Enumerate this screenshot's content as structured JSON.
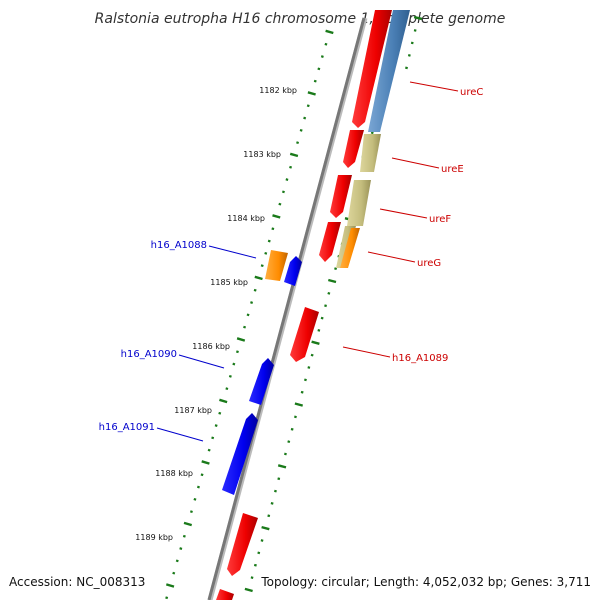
{
  "title": "Ralstonia eutropha H16 chromosome 1, complete genome",
  "footer": {
    "accession": "Accession: NC_008313",
    "topology": "Topology: circular; Length: 4,052,032 bp; Genes: 3,711"
  },
  "ticks": [
    "1182 kbp",
    "1183 kbp",
    "1184 kbp",
    "1185 kbp",
    "1186 kbp",
    "1187 kbp",
    "1188 kbp",
    "1189 kbp"
  ],
  "labels": {
    "ureC": "ureC",
    "ureE": "ureE",
    "ureF": "ureF",
    "ureG": "ureG",
    "h16_A1089": "h16_A1089",
    "h16_A1088": "h16_A1088",
    "h16_A1090": "h16_A1090",
    "h16_A1091": "h16_A1091"
  },
  "colors": {
    "forward_cds": "#ff0000",
    "reverse_cds": "#0000ee",
    "feature_blue": "#4a7fb5",
    "feature_tan": "#c4bd7d",
    "feature_orange": "#ff8c00",
    "backbone": "#888888",
    "tick_green": "#1a7a1a",
    "label_red": "#cc0000",
    "label_blue": "#0000cc"
  }
}
